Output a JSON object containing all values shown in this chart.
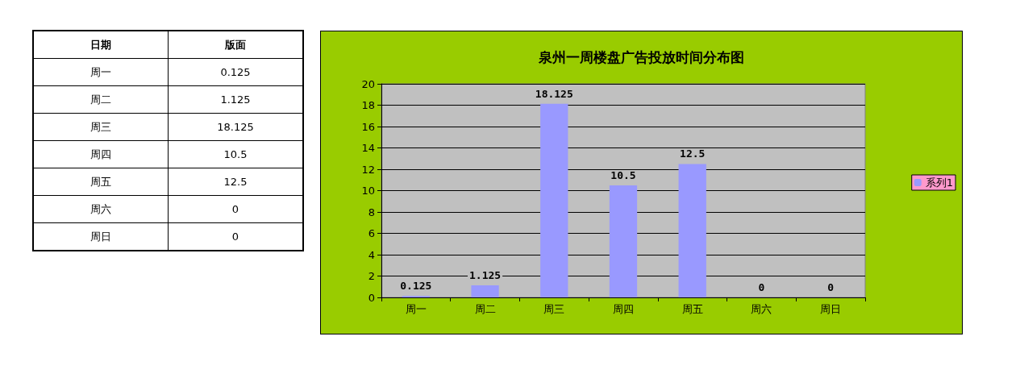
{
  "chart_data": {
    "type": "bar",
    "title": "泉州一周楼盘广告投放时间分布图",
    "categories": [
      "周一",
      "周二",
      "周三",
      "周四",
      "周五",
      "周六",
      "周日"
    ],
    "series": [
      {
        "name": "系列1",
        "color": "#9999ff",
        "values": [
          0.125,
          1.125,
          18.125,
          10.5,
          12.5,
          0,
          0
        ],
        "value_labels": [
          "0.125",
          "1.125",
          "18.125",
          "10.5",
          "12.5",
          "0",
          "0"
        ]
      }
    ],
    "ylim": [
      0,
      20
    ],
    "yticks": [
      0,
      2,
      4,
      6,
      8,
      10,
      12,
      14,
      16,
      18,
      20
    ],
    "grid": "y",
    "legend": "right",
    "annotations": [
      "日期",
      "版面"
    ]
  }
}
